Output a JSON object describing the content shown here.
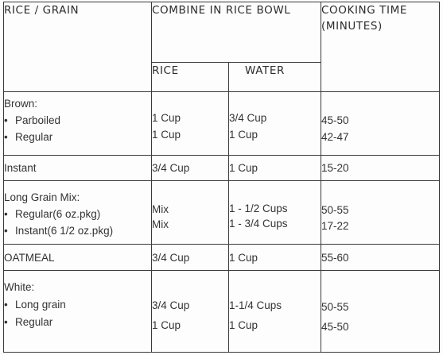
{
  "headers": {
    "rice_grain": "RICE / GRAIN",
    "combine_line1": "COMBINE IN RICE",
    "combine_line2": "BOWL",
    "cooking_line1": "COOKING TIME",
    "cooking_line2": "(MINUTES)",
    "rice": "RICE",
    "water": "WATER"
  },
  "bullet": "•",
  "rows": [
    {
      "category": "Brown:",
      "items": [
        {
          "name": "Parboiled",
          "rice": "1 Cup",
          "water": "3/4 Cup",
          "time": "45-50"
        },
        {
          "name": "Regular",
          "rice": "1 Cup",
          "water": "1 Cup",
          "time": "42-47"
        }
      ]
    },
    {
      "category": "Instant",
      "rice": "3/4 Cup",
      "water": "1 Cup",
      "time": "15-20"
    },
    {
      "category": "Long Grain Mix:",
      "items": [
        {
          "name": "Regular(6 oz.pkg)",
          "rice": "Mix",
          "water": "1 - 1/2 Cups",
          "time": "50-55"
        },
        {
          "name": "Instant(6 1/2 oz.pkg)",
          "rice": "Mix",
          "water": "1 - 3/4 Cups",
          "time": "17-22"
        }
      ]
    },
    {
      "category": "OATMEAL",
      "rice": "3/4 Cup",
      "water": "1 Cup",
      "time": "55-60"
    },
    {
      "category": "White:",
      "items": [
        {
          "name": "Long grain",
          "rice": "3/4 Cup",
          "water": "1-1/4 Cups",
          "time": "50-55"
        },
        {
          "name": "Regular",
          "rice": "1 Cup",
          "water": "1 Cup",
          "time": "45-50"
        }
      ]
    }
  ]
}
